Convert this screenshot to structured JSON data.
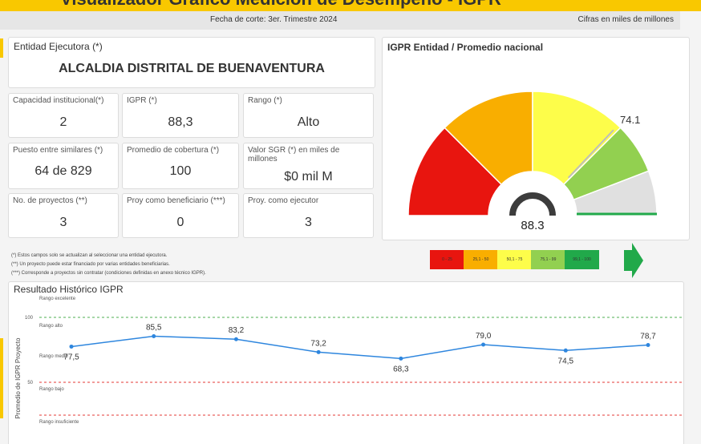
{
  "header": {
    "title": "Visualizador Gráfico Medición de Desempeño - IGPR",
    "cutoff_date": "Fecha de corte: 3er. Trimestre 2024",
    "units": "Cifras en miles de millones"
  },
  "entity": {
    "label": "Entidad Ejecutora (*)",
    "name": "ALCALDIA DISTRITAL DE BUENAVENTURA"
  },
  "kpis": [
    {
      "label": "Capacidad institucional(*)",
      "value": "2"
    },
    {
      "label": "IGPR (*)",
      "value": "88,3"
    },
    {
      "label": "Rango (*)",
      "value": "Alto"
    },
    {
      "label": "Puesto entre similares (*)",
      "value": "64 de 829"
    },
    {
      "label": "Promedio de cobertura (*)",
      "value": "100"
    },
    {
      "label": "Valor SGR (*) en miles de millones",
      "value": "$0 mil M"
    },
    {
      "label": "No. de proyectos (**)",
      "value": "3"
    },
    {
      "label": "Proy como beneficiario (***)",
      "value": "0"
    },
    {
      "label": "Proy. como ejecutor",
      "value": "3"
    }
  ],
  "notes": [
    "(*) Estos campos solo se actualizan al seleccionar una entidad ejecutora.",
    "(**) Un proyecto puede estar financiado por varias entidades beneficiarias.",
    "(***) Corresponde a proyectos sin contratar (condiciones definidas en anexo técnico IGPR)."
  ],
  "gauge": {
    "title": "IGPR Entidad / Promedio nacional",
    "value": 88.3,
    "value_label": "88.3",
    "national_average": 74.1,
    "national_label": "74.1",
    "min": 0,
    "max": 100,
    "bands": [
      {
        "from": 0,
        "to": 25,
        "color": "#e8150f"
      },
      {
        "from": 25,
        "to": 50,
        "color": "#f9ae00"
      },
      {
        "from": 50,
        "to": 75,
        "color": "#fdfd4a"
      },
      {
        "from": 75,
        "to": 100,
        "color": "#92d050"
      }
    ],
    "arc_gray": "#e0e0e0",
    "needle_color": "#3c3c3c"
  },
  "legend": [
    {
      "label": "0 - 25",
      "color": "#e8150f"
    },
    {
      "label": "25,1 - 50",
      "color": "#f9ae00"
    },
    {
      "label": "50,1 - 75",
      "color": "#fdfd4a"
    },
    {
      "label": "75,1 - 99",
      "color": "#92d050"
    },
    {
      "label": "99,1 - 100",
      "color": "#21a94a"
    }
  ],
  "history": {
    "title": "Resultado Histórico IGPR",
    "bands": {
      "excelente": "Rango excelente",
      "alto": "Rango alto",
      "medio": "Rango medio",
      "bajo": "Rango bajo",
      "insuficiente": "Rango insuficiente"
    },
    "ticks": {
      "t100": "100",
      "t50": "50"
    }
  },
  "chart_data": {
    "type": "line",
    "title": "Resultado Histórico IGPR",
    "ylabel": "Promedio de IGPR Proyecto",
    "xlabel": "",
    "y_ticks": [
      50,
      100
    ],
    "series": [
      {
        "values": [
          77.5,
          85.5,
          83.2,
          73.2,
          68.3,
          79.0,
          74.5,
          78.7
        ],
        "labels": [
          "77,5",
          "85,5",
          "83,2",
          "73,2",
          "68,3",
          "79,0",
          "74,5",
          "78,7"
        ]
      }
    ],
    "reference_lines": [
      {
        "y": 100,
        "color": "#4caf50"
      },
      {
        "y": 50,
        "color": "#e53935"
      }
    ],
    "line_color": "#2e86de",
    "grid": false
  }
}
